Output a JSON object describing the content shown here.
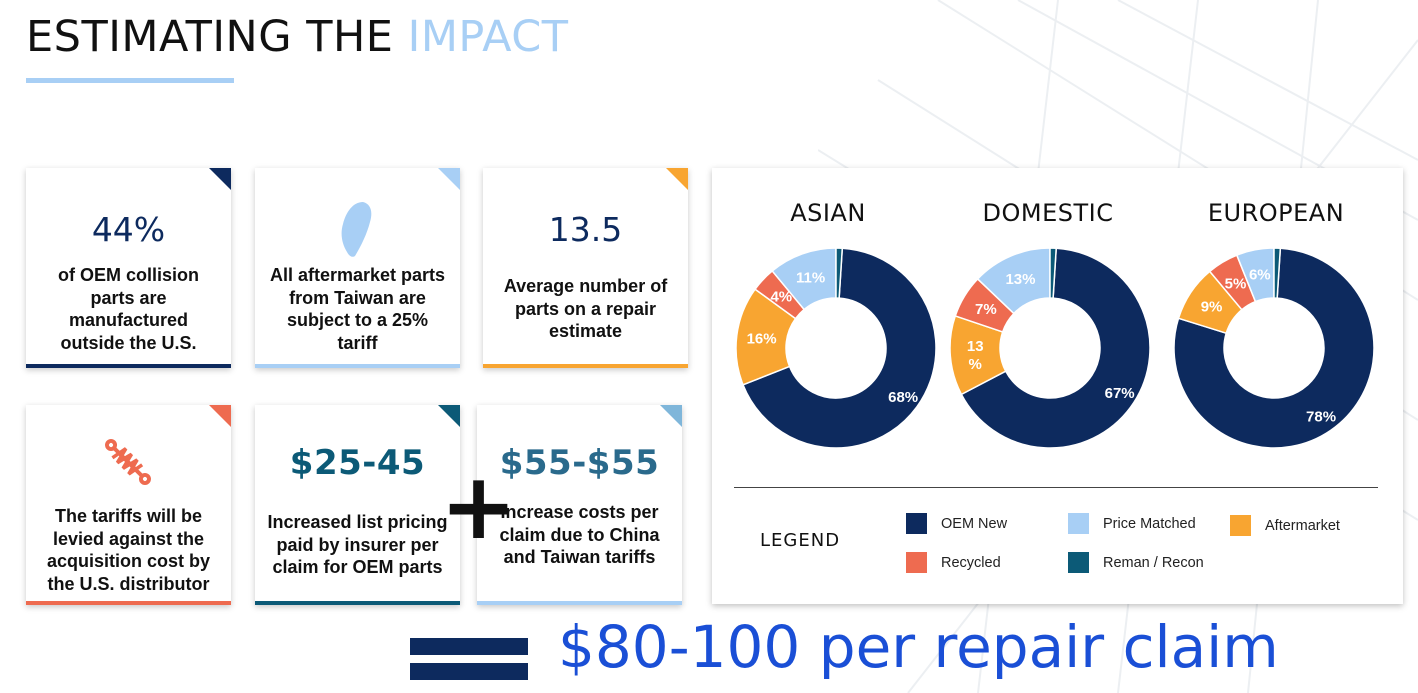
{
  "header": {
    "title_main": "ESTIMATING THE ",
    "title_accent": "IMPACT"
  },
  "colors": {
    "navy": "#0d2a5e",
    "light_blue": "#a8cff5",
    "orange": "#f8a531",
    "coral": "#ee6b50",
    "teal": "#0c5a77",
    "total_blue": "#1a4fd6"
  },
  "cards": {
    "oem": {
      "value": "44%",
      "desc": "of OEM collision parts are manufactured outside the U.S.",
      "icon": "none"
    },
    "taiwan": {
      "icon": "taiwan-map-icon",
      "desc": "All aftermarket parts from Taiwan are subject to a 25% tariff"
    },
    "parts": {
      "value": "13.5",
      "desc": "Average number of parts on a repair estimate"
    },
    "distributor": {
      "icon": "shock-absorber-icon",
      "desc": "The tariffs will be levied against the acquisition cost by the U.S. distributor"
    },
    "insurer": {
      "value": "$25-45",
      "desc": "Increased list pricing paid by insurer per claim for OEM parts"
    },
    "china": {
      "value": "$55-$55",
      "desc": "Increase costs per claim due to China and Taiwan tariffs"
    }
  },
  "plus_sign": "+",
  "total": {
    "text": "$80-100 per repair claim"
  },
  "chart_data": [
    {
      "type": "pie",
      "title": "ASIAN",
      "categories": [
        "OEM New",
        "Aftermarket",
        "Recycled",
        "Price Matched",
        "Reman / Recon"
      ],
      "values": [
        68,
        16,
        4,
        11,
        1
      ],
      "labels": [
        "68%",
        "16%",
        "4%",
        "11%",
        ""
      ]
    },
    {
      "type": "pie",
      "title": "DOMESTIC",
      "categories": [
        "OEM New",
        "Aftermarket",
        "Recycled",
        "Price Matched",
        "Reman / Recon"
      ],
      "values": [
        67,
        13,
        7,
        13,
        1
      ],
      "labels": [
        "67%",
        "13\n%",
        "7%",
        "13%",
        ""
      ]
    },
    {
      "type": "pie",
      "title": "EUROPEAN",
      "categories": [
        "OEM New",
        "Aftermarket",
        "Recycled",
        "Price Matched",
        "Reman / Recon"
      ],
      "values": [
        78,
        9,
        5,
        6,
        1
      ],
      "labels": [
        "78%",
        "9%",
        "5%",
        "6%",
        ""
      ]
    }
  ],
  "legend": {
    "title": "LEGEND",
    "items": [
      {
        "label": "OEM New",
        "color": "#0d2a5e"
      },
      {
        "label": "Price Matched",
        "color": "#a8cff5"
      },
      {
        "label": "Aftermarket",
        "color": "#f8a531"
      },
      {
        "label": "Recycled",
        "color": "#ee6b50"
      },
      {
        "label": "Reman / Recon",
        "color": "#0c5a77"
      }
    ]
  }
}
